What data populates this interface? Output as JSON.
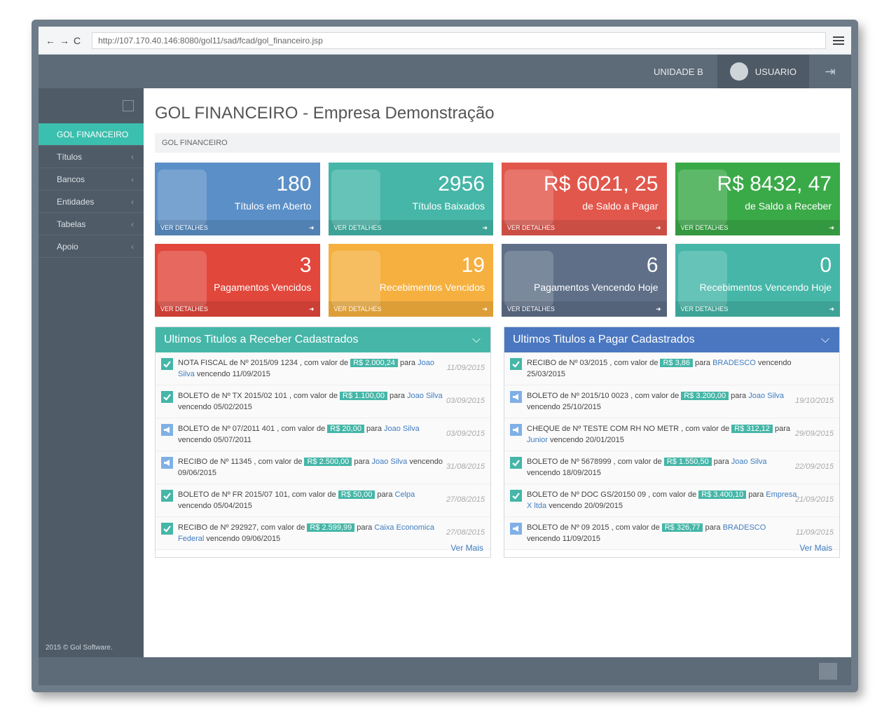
{
  "browser": {
    "url": "http://107.170.40.146:8080/gol11/sad/fcad/gol_financeiro.jsp"
  },
  "header": {
    "unit": "UNIDADE B",
    "user": "USUARIO"
  },
  "sidebar": {
    "items": [
      "GOL FINANCEIRO",
      "Títulos",
      "Bancos",
      "Entidades",
      "Tabelas",
      "Apoio"
    ],
    "footer": "2015 © Gol Software."
  },
  "page": {
    "title": "GOL FINANCEIRO - Empresa Demonstração",
    "breadcrumb": "GOL FINANCEIRO"
  },
  "tiles": [
    {
      "value": "180",
      "label": "Títulos em Aberto",
      "link": "VER DETALHES",
      "color": "#5b8fc7"
    },
    {
      "value": "2956",
      "label": "Títulos Baixados",
      "link": "VER DETALHES",
      "color": "#45b6a8"
    },
    {
      "value": "R$ 6021, 25",
      "label": "de Saldo a Pagar",
      "link": "VER DETALHES",
      "color": "#e2574c"
    },
    {
      "value": "R$ 8432, 47",
      "label": "de Saldo a Receber",
      "link": "VER DETALHES",
      "color": "#3aaa48"
    },
    {
      "value": "3",
      "label": "Pagamentos Vencidos",
      "link": "VER DETALHES",
      "color": "#e2473c"
    },
    {
      "value": "19",
      "label": "Recebimentos Vencidos",
      "link": "VER DETALHES",
      "color": "#f6b03f"
    },
    {
      "value": "6",
      "label": "Pagamentos Vencendo Hoje",
      "link": "VER DETALHES",
      "color": "#5f6f88"
    },
    {
      "value": "0",
      "label": "Recebimentos Vencendo Hoje",
      "link": "VER DETALHES",
      "color": "#45b6a8"
    }
  ],
  "panels": [
    {
      "title": "Ultimos Titulos a Receber Cadastrados",
      "color": "#45b6a8",
      "more": "Ver Mais",
      "items": [
        {
          "icon": "check",
          "text": "NOTA FISCAL de Nº 2015/09 1234 , com valor de",
          "amount": "R$ 2.000,24",
          "para": "para",
          "name": "Joao Silva",
          "due": "vencendo 11/09/2015",
          "date": "11/09/2015"
        },
        {
          "icon": "check",
          "text": "BOLETO de Nº TX 2015/02 101 , com valor de",
          "amount": "R$ 1.100,00",
          "para": "para",
          "name": "Joao Silva",
          "due": "vencendo 05/02/2015",
          "date": "03/09/2015"
        },
        {
          "icon": "bullhorn",
          "text": "BOLETO de Nº 07/2011 401 , com valor de",
          "amount": "R$ 20,00",
          "para": "para",
          "name": "Joao Silva",
          "due": "vencendo 05/07/2011",
          "date": "03/09/2015"
        },
        {
          "icon": "bullhorn",
          "text": "RECIBO de Nº 11345 , com valor de",
          "amount": "R$ 2.500,00",
          "para": "para",
          "name": "Joao Silva",
          "due": "vencendo 09/06/2015",
          "date": "31/08/2015"
        },
        {
          "icon": "check",
          "text": "BOLETO de Nº FR 2015/07 101, com valor de",
          "amount": "R$ 50,00",
          "para": "para",
          "name": "Celpa",
          "due": "vencendo 05/04/2015",
          "date": "27/08/2015"
        },
        {
          "icon": "check",
          "text": "RECIBO de Nº 292927, com valor de",
          "amount": "R$ 2.599,99",
          "para": "para",
          "name": "Caixa Economica Federal",
          "due": "vencendo 09/06/2015",
          "date": "27/08/2015"
        }
      ]
    },
    {
      "title": "Ultimos Titulos a Pagar Cadastrados",
      "color": "#4a77c0",
      "more": "Ver Mais",
      "items": [
        {
          "icon": "check",
          "text": "RECIBO de Nº 03/2015 , com valor de",
          "amount": "R$ 3,86",
          "para": "para",
          "name": "BRADESCO",
          "due": "vencendo 25/03/2015"
        },
        {
          "icon": "bullhorn",
          "text": "BOLETO de Nº 2015/10 0023 , com valor de",
          "amount": "R$ 3.200,00",
          "para": "para",
          "name": "Joao Silva",
          "due": "vencendo 25/10/2015",
          "date": "19/10/2015"
        },
        {
          "icon": "bullhorn",
          "text": "CHEQUE de Nº TESTE COM RH NO METR , com valor de",
          "amount": "R$ 312,12",
          "para": "para",
          "name": "Junior",
          "due": "vencendo 20/01/2015",
          "date": "29/09/2015"
        },
        {
          "icon": "check",
          "text": "BOLETO de Nº 5678999 , com valor de",
          "amount": "R$ 1.550,50",
          "para": "para",
          "name": "Joao Silva",
          "due": "vencendo 18/09/2015",
          "date": "22/09/2015"
        },
        {
          "icon": "check",
          "text": "BOLETO de Nº DOC GS/20150 09 , com valor de",
          "amount": "R$ 3.400,10",
          "para": "para",
          "name": "Empresa X ltda",
          "due": "vencendo 20/09/2015",
          "date": "21/09/2015"
        },
        {
          "icon": "bullhorn",
          "text": "BOLETO de Nº 09 2015 , com valor de",
          "amount": "R$ 326,77",
          "para": "para",
          "name": "BRADESCO",
          "due": "vencendo 11/09/2015",
          "date": "11/09/2015"
        }
      ]
    }
  ]
}
